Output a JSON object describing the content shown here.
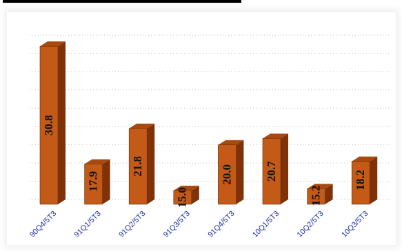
{
  "chart_data": {
    "type": "bar",
    "categories": [
      "90Q4/5T3",
      "91Q1/5T3",
      "91Q2/5T3",
      "91Q3/5T3",
      "91Q4/5T3",
      "10Q1/5T3",
      "10Q2/5T3",
      "10Q3/5T3"
    ],
    "values": [
      30.8,
      17.9,
      21.8,
      15.0,
      20.0,
      20.7,
      15.2,
      18.2
    ],
    "value_labels": [
      "30.8",
      "17.9",
      "21.8",
      "15.0",
      "20.0",
      "20.7",
      "15.2",
      "18.2"
    ],
    "ylim": [
      13.5,
      31.5
    ],
    "grid": true,
    "bar_style": "3d",
    "colors": {
      "bar_front": "#c45a17",
      "bar_side": "#7f3208",
      "bar_top": "#a84a0f",
      "tick_label": "#1b2fa8",
      "value_label": "#111111",
      "grid": "#bfbfbf"
    }
  }
}
